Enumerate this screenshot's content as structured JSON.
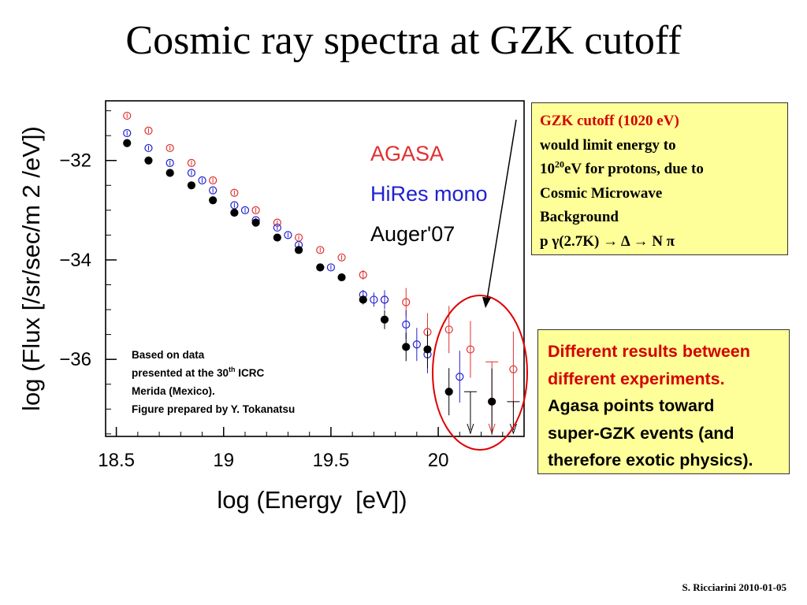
{
  "slide": {
    "title": "Cosmic ray spectra at GZK cutoff",
    "footer": "S. Ricciarini 2010-01-05"
  },
  "gzk_box": {
    "line1": "GZK cutoff (1020 eV)",
    "line2": "would limit energy to",
    "line3_base": "10",
    "line3_sup": "20",
    "line3_rest": "eV for protons, due to",
    "line4": "Cosmic Microwave",
    "line5": "Background",
    "line6": "p γ(2.7K) → Δ → N π"
  },
  "diff_box": {
    "line1": "Different results between",
    "line2": "different experiments.",
    "line3": "Agasa points toward",
    "line4": "super-GZK events (and",
    "line5": "therefore exotic physics)."
  },
  "annotation": {
    "line1": "Based on data",
    "line2_a": "presented at the 30",
    "line2_sup": "th",
    "line2_b": " ICRC",
    "line3": "Merida (Mexico).",
    "line4": "Figure prepared by Y. Tokanatsu"
  },
  "colors": {
    "agasa": "#e03030",
    "hires": "#2020d0",
    "auger": "#000000",
    "highlight_ellipse": "#e00000",
    "box_fill": "#ffff99"
  },
  "chart_data": {
    "type": "scatter",
    "xlabel": "log (Energy  [eV])",
    "ylabel": "log (Flux [/sr/sec/m 2 /eV])",
    "xlim": [
      18.45,
      20.4
    ],
    "ylim": [
      -37.55,
      -30.8
    ],
    "x_ticks": [
      18.5,
      19,
      19.5,
      20
    ],
    "x_tick_labels": [
      "18.5",
      "19",
      "19.5",
      "20"
    ],
    "y_ticks": [
      -32,
      -34,
      -36
    ],
    "y_tick_labels": [
      "−32",
      "−34",
      "−36"
    ],
    "grid": false,
    "legend_position": "top-right",
    "series": [
      {
        "name": "AGASA",
        "marker": "open-circle",
        "color": "#e03030",
        "points": [
          {
            "x": 18.55,
            "y": -31.1
          },
          {
            "x": 18.65,
            "y": -31.4
          },
          {
            "x": 18.75,
            "y": -31.75
          },
          {
            "x": 18.85,
            "y": -32.05
          },
          {
            "x": 18.95,
            "y": -32.4
          },
          {
            "x": 19.05,
            "y": -32.65
          },
          {
            "x": 19.15,
            "y": -33.0
          },
          {
            "x": 19.25,
            "y": -33.25
          },
          {
            "x": 19.35,
            "y": -33.55
          },
          {
            "x": 19.45,
            "y": -33.8
          },
          {
            "x": 19.55,
            "y": -33.95
          },
          {
            "x": 19.65,
            "y": -34.3
          },
          {
            "x": 19.75,
            "y": -34.8
          },
          {
            "x": 19.85,
            "y": -34.85
          },
          {
            "x": 19.95,
            "y": -35.45
          },
          {
            "x": 20.05,
            "y": -35.4
          },
          {
            "x": 20.15,
            "y": -35.8
          },
          {
            "x": 20.35,
            "y": -36.2
          }
        ],
        "upper_limits": [
          {
            "x": 20.25,
            "y": -36.05
          }
        ]
      },
      {
        "name": "HiRes mono",
        "marker": "open-circle",
        "color": "#2020d0",
        "points": [
          {
            "x": 18.55,
            "y": -31.45
          },
          {
            "x": 18.65,
            "y": -31.75
          },
          {
            "x": 18.75,
            "y": -32.05
          },
          {
            "x": 18.85,
            "y": -32.25
          },
          {
            "x": 18.9,
            "y": -32.4
          },
          {
            "x": 18.95,
            "y": -32.6
          },
          {
            "x": 19.05,
            "y": -32.9
          },
          {
            "x": 19.1,
            "y": -33.0
          },
          {
            "x": 19.15,
            "y": -33.2
          },
          {
            "x": 19.25,
            "y": -33.35
          },
          {
            "x": 19.3,
            "y": -33.5
          },
          {
            "x": 19.35,
            "y": -33.7
          },
          {
            "x": 19.45,
            "y": -34.15
          },
          {
            "x": 19.5,
            "y": -34.15
          },
          {
            "x": 19.65,
            "y": -34.7
          },
          {
            "x": 19.7,
            "y": -34.8
          },
          {
            "x": 19.75,
            "y": -34.8
          },
          {
            "x": 19.85,
            "y": -35.3
          },
          {
            "x": 19.9,
            "y": -35.7
          },
          {
            "x": 19.95,
            "y": -35.9
          },
          {
            "x": 20.1,
            "y": -36.35
          }
        ],
        "upper_limits": []
      },
      {
        "name": "Auger'07",
        "marker": "filled-circle",
        "color": "#000000",
        "points": [
          {
            "x": 18.55,
            "y": -31.65
          },
          {
            "x": 18.65,
            "y": -32.0
          },
          {
            "x": 18.75,
            "y": -32.25
          },
          {
            "x": 18.85,
            "y": -32.5
          },
          {
            "x": 18.95,
            "y": -32.8
          },
          {
            "x": 19.05,
            "y": -33.05
          },
          {
            "x": 19.15,
            "y": -33.25
          },
          {
            "x": 19.25,
            "y": -33.55
          },
          {
            "x": 19.35,
            "y": -33.8
          },
          {
            "x": 19.45,
            "y": -34.15
          },
          {
            "x": 19.55,
            "y": -34.35
          },
          {
            "x": 19.65,
            "y": -34.8
          },
          {
            "x": 19.75,
            "y": -35.2
          },
          {
            "x": 19.85,
            "y": -35.75
          },
          {
            "x": 19.95,
            "y": -35.8
          },
          {
            "x": 20.05,
            "y": -36.65
          },
          {
            "x": 20.25,
            "y": -36.85
          }
        ],
        "upper_limits": [
          {
            "x": 20.15,
            "y": -36.65
          },
          {
            "x": 20.35,
            "y": -36.85
          }
        ]
      }
    ]
  }
}
